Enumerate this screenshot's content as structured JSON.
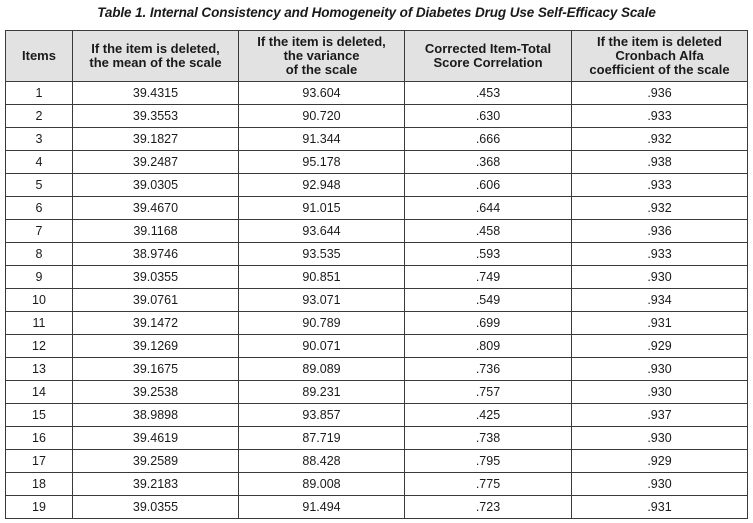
{
  "caption": "Table 1.  Internal Consistency and Homogeneity of Diabetes Drug Use Self-Efficacy Scale",
  "table": {
    "headers": [
      [
        "Items"
      ],
      [
        "If the item is deleted,",
        "the mean of the scale"
      ],
      [
        "If the item is deleted,",
        "the variance",
        "of the scale"
      ],
      [
        "Corrected Item-Total",
        "Score Correlation"
      ],
      [
        "If the item is deleted",
        "Cronbach Alfa",
        "coefficient of the scale"
      ]
    ],
    "rows": [
      [
        "1",
        "39.4315",
        "93.604",
        ".453",
        ".936"
      ],
      [
        "2",
        "39.3553",
        "90.720",
        ".630",
        ".933"
      ],
      [
        "3",
        "39.1827",
        "91.344",
        ".666",
        ".932"
      ],
      [
        "4",
        "39.2487",
        "95.178",
        ".368",
        ".938"
      ],
      [
        "5",
        "39.0305",
        "92.948",
        ".606",
        ".933"
      ],
      [
        "6",
        "39.4670",
        "91.015",
        ".644",
        ".932"
      ],
      [
        "7",
        "39.1168",
        "93.644",
        ".458",
        ".936"
      ],
      [
        "8",
        "38.9746",
        "93.535",
        ".593",
        ".933"
      ],
      [
        "9",
        "39.0355",
        "90.851",
        ".749",
        ".930"
      ],
      [
        "10",
        "39.0761",
        "93.071",
        ".549",
        ".934"
      ],
      [
        "11",
        "39.1472",
        "90.789",
        ".699",
        ".931"
      ],
      [
        "12",
        "39.1269",
        "90.071",
        ".809",
        ".929"
      ],
      [
        "13",
        "39.1675",
        "89.089",
        ".736",
        ".930"
      ],
      [
        "14",
        "39.2538",
        "89.231",
        ".757",
        ".930"
      ],
      [
        "15",
        "38.9898",
        "93.857",
        ".425",
        ".937"
      ],
      [
        "16",
        "39.4619",
        "87.719",
        ".738",
        ".930"
      ],
      [
        "17",
        "39.2589",
        "88.428",
        ".795",
        ".929"
      ],
      [
        "18",
        "39.2183",
        "89.008",
        ".775",
        ".930"
      ],
      [
        "19",
        "39.0355",
        "91.494",
        ".723",
        ".931"
      ]
    ]
  }
}
